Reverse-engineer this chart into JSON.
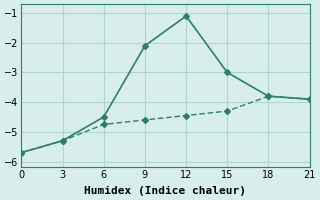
{
  "line1_x": [
    0,
    3,
    6,
    9,
    12,
    15,
    18,
    21
  ],
  "line1_y": [
    -5.7,
    -5.3,
    -4.5,
    -2.1,
    -1.1,
    -3.0,
    -3.8,
    -3.9
  ],
  "line2_x": [
    0,
    3,
    6,
    9,
    12,
    15,
    18,
    21
  ],
  "line2_y": [
    -5.7,
    -5.3,
    -4.75,
    -4.6,
    -4.45,
    -4.3,
    -3.8,
    -3.9
  ],
  "line_color": "#2e7d6e",
  "bg_color": "#d8eeec",
  "grid_color": "#b0d4d0",
  "xlabel": "Humidex (Indice chaleur)",
  "xlim": [
    0,
    21
  ],
  "ylim": [
    -6.2,
    -0.7
  ],
  "xticks": [
    0,
    3,
    6,
    9,
    12,
    15,
    18,
    21
  ],
  "yticks": [
    -1,
    -2,
    -3,
    -4,
    -5,
    -6
  ],
  "title_fontsize": 9,
  "label_fontsize": 8
}
